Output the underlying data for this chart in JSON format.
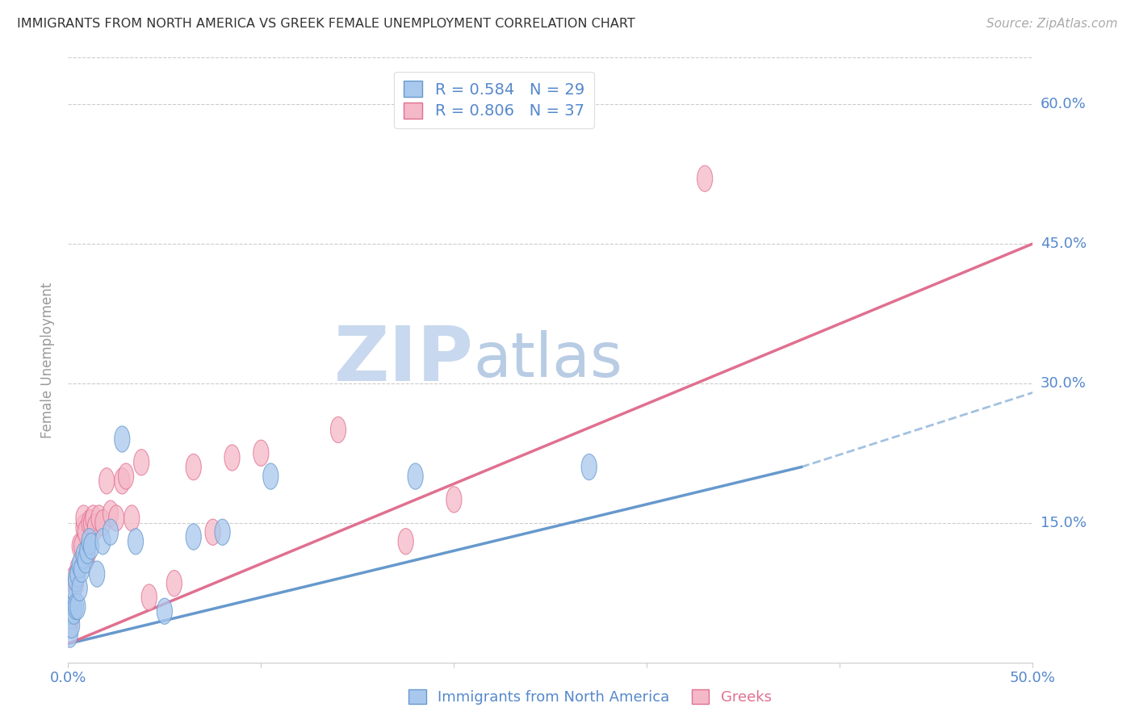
{
  "title": "IMMIGRANTS FROM NORTH AMERICA VS GREEK FEMALE UNEMPLOYMENT CORRELATION CHART",
  "source": "Source: ZipAtlas.com",
  "ylabel": "Female Unemployment",
  "ytick_labels": [
    "15.0%",
    "30.0%",
    "45.0%",
    "60.0%"
  ],
  "ytick_values": [
    0.15,
    0.3,
    0.45,
    0.6
  ],
  "xlim": [
    0.0,
    0.5
  ],
  "ylim": [
    0.0,
    0.65
  ],
  "legend_label1": "Immigrants from North America",
  "legend_label2": "Greeks",
  "R1": 0.584,
  "N1": 29,
  "R2": 0.806,
  "N2": 37,
  "color_blue_face": "#A8C8EE",
  "color_blue_edge": "#6699CC",
  "color_pink_face": "#F5B8C8",
  "color_pink_edge": "#E07090",
  "color_blue_line": "#6699CC",
  "color_pink_line": "#E07090",
  "color_axis_labels": "#5588CC",
  "color_N_labels": "#DD4444",
  "watermark_ZIP_color": "#C8D8EE",
  "watermark_atlas_color": "#B8C8E0",
  "background_color": "#FFFFFF",
  "blue_scatter_x": [
    0.001,
    0.001,
    0.002,
    0.002,
    0.003,
    0.003,
    0.004,
    0.004,
    0.005,
    0.005,
    0.006,
    0.006,
    0.007,
    0.008,
    0.009,
    0.01,
    0.011,
    0.012,
    0.015,
    0.018,
    0.022,
    0.028,
    0.035,
    0.05,
    0.065,
    0.08,
    0.105,
    0.18,
    0.27
  ],
  "blue_scatter_y": [
    0.03,
    0.055,
    0.04,
    0.065,
    0.055,
    0.08,
    0.06,
    0.09,
    0.06,
    0.095,
    0.08,
    0.105,
    0.1,
    0.115,
    0.11,
    0.12,
    0.13,
    0.125,
    0.095,
    0.13,
    0.14,
    0.24,
    0.13,
    0.055,
    0.135,
    0.14,
    0.2,
    0.2,
    0.21
  ],
  "pink_scatter_x": [
    0.001,
    0.001,
    0.002,
    0.002,
    0.003,
    0.003,
    0.004,
    0.005,
    0.006,
    0.007,
    0.008,
    0.008,
    0.009,
    0.01,
    0.011,
    0.012,
    0.013,
    0.014,
    0.016,
    0.018,
    0.02,
    0.022,
    0.025,
    0.028,
    0.03,
    0.033,
    0.038,
    0.042,
    0.055,
    0.065,
    0.075,
    0.085,
    0.1,
    0.14,
    0.175,
    0.2,
    0.33
  ],
  "pink_scatter_y": [
    0.04,
    0.065,
    0.05,
    0.075,
    0.06,
    0.09,
    0.085,
    0.1,
    0.125,
    0.125,
    0.145,
    0.155,
    0.14,
    0.115,
    0.15,
    0.15,
    0.155,
    0.145,
    0.155,
    0.15,
    0.195,
    0.16,
    0.155,
    0.195,
    0.2,
    0.155,
    0.215,
    0.07,
    0.085,
    0.21,
    0.14,
    0.22,
    0.225,
    0.25,
    0.13,
    0.175,
    0.52
  ],
  "blue_line_x": [
    0.0,
    0.38
  ],
  "blue_line_y": [
    0.02,
    0.21
  ],
  "pink_line_x": [
    0.0,
    0.5
  ],
  "pink_line_y": [
    0.02,
    0.45
  ]
}
